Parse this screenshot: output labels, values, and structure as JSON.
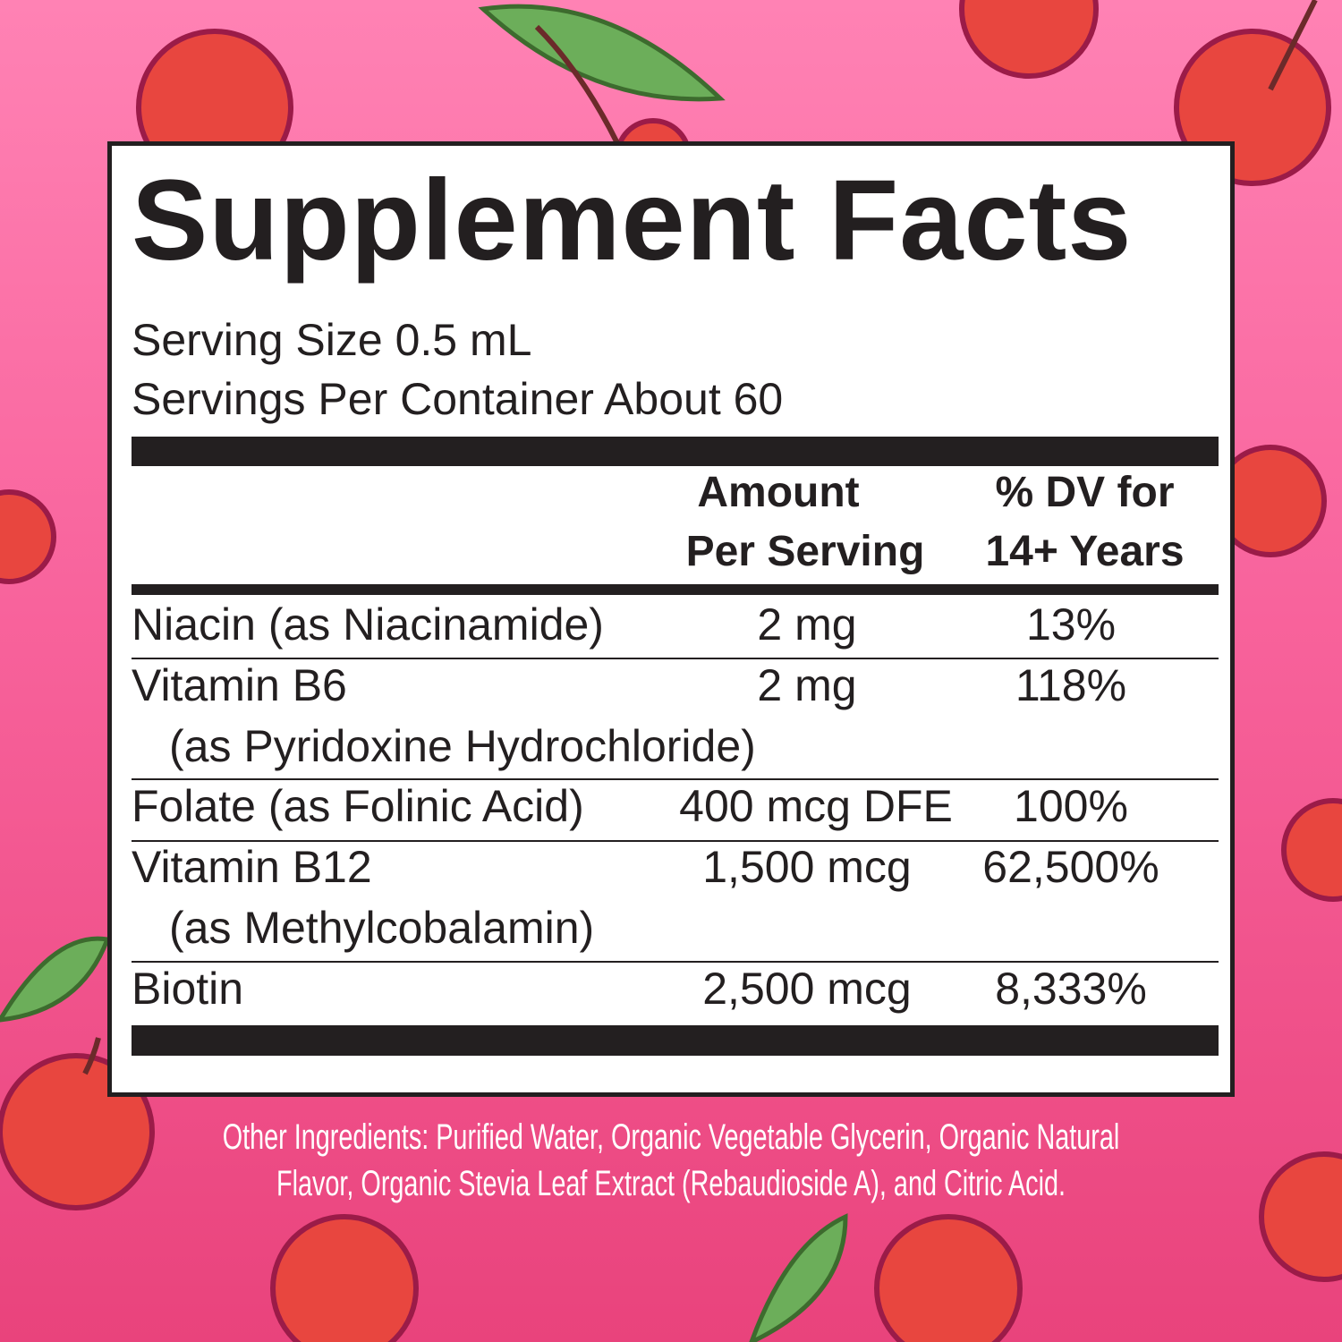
{
  "title": "Supplement Facts",
  "serving_size": "Serving Size 0.5 mL",
  "servings_per_container": "Servings Per Container About 60",
  "headers": {
    "amount_1": "Amount",
    "amount_2": "Per Serving",
    "dv_1": "% DV for",
    "dv_2": "14+ Years"
  },
  "rows": [
    {
      "name": "Niacin (as Niacinamide)",
      "sub": "",
      "amount": "2 mg",
      "dv": "13%"
    },
    {
      "name": "Vitamin B6",
      "sub": "(as Pyridoxine Hydrochloride)",
      "amount": "2 mg",
      "dv": "118%"
    },
    {
      "name": "Folate (as Folinic Acid)",
      "sub": "",
      "amount": "400 mcg DFE",
      "dv": "100%"
    },
    {
      "name": "Vitamin B12",
      "sub": "(as Methylcobalamin)",
      "amount": "1,500 mcg",
      "dv": "62,500%"
    },
    {
      "name": "Biotin",
      "sub": "",
      "amount": "2,500 mcg",
      "dv": "8,333%"
    }
  ],
  "other_ingredients": {
    "line1": "Other Ingredients: Purified Water, Organic Vegetable Glycerin, Organic Natural",
    "line2": "Flavor, Organic Stevia Leaf Extract (Rebaudioside A), and Citric Acid."
  },
  "colors": {
    "background_top": "#ff82b4",
    "background_bottom": "#e9437c",
    "cherry": "#e8463f",
    "leaf": "#6cae5a",
    "ink": "#231f20"
  }
}
